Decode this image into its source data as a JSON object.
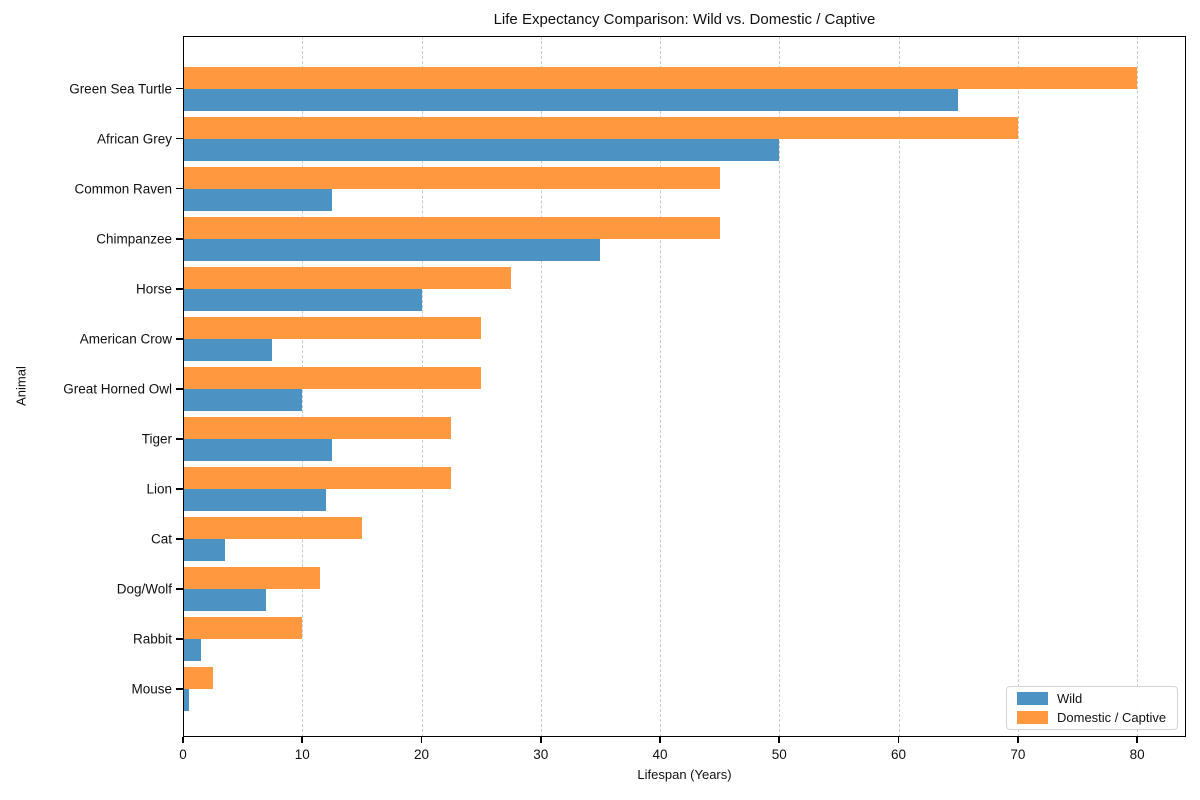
{
  "chart_data": {
    "type": "bar",
    "orientation": "horizontal",
    "title": "Life Expectancy Comparison: Wild vs. Domestic / Captive",
    "xlabel": "Lifespan (Years)",
    "ylabel": "Animal",
    "categories": [
      "Green Sea Turtle",
      "African Grey",
      "Common Raven",
      "Chimpanzee",
      "Horse",
      "American Crow",
      "Great Horned Owl",
      "Tiger",
      "Lion",
      "Cat",
      "Dog/Wolf",
      "Rabbit",
      "Mouse"
    ],
    "series": [
      {
        "name": "Wild",
        "color": "#4C92C3",
        "values": [
          65,
          50,
          12.5,
          35,
          20,
          7.5,
          10,
          12.5,
          12,
          3.5,
          7,
          1.5,
          0.5
        ]
      },
      {
        "name": "Domestic / Captive",
        "color": "#FF993F",
        "values": [
          80,
          70,
          45,
          45,
          27.5,
          25,
          25,
          22.5,
          22.5,
          15,
          11.5,
          10,
          2.5
        ]
      }
    ],
    "xlim": [
      0,
      84.1
    ],
    "xticks": [
      0,
      10,
      20,
      30,
      40,
      50,
      60,
      70,
      80
    ],
    "grid": "vertical-dashed",
    "gridline_color": "#c9c9c9",
    "legend_position": "lower right"
  }
}
